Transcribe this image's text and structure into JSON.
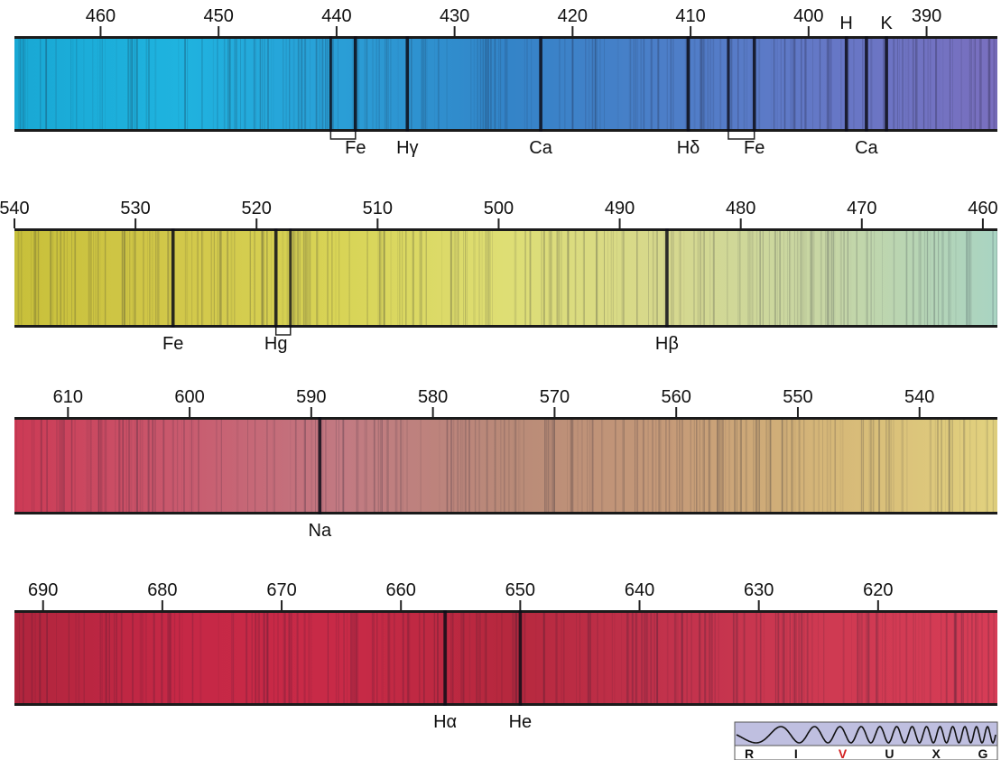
{
  "strips": [
    {
      "ticks": [
        460,
        450,
        440,
        430,
        420,
        410,
        400,
        390
      ],
      "colors": [
        "#19a8d4",
        "#1fb3df",
        "#2a9ed6",
        "#3384c8",
        "#4d7ec8",
        "#6677c6",
        "#7a6fbf"
      ],
      "lines": [
        {
          "nm": 438.4,
          "label": "Fe",
          "bracket_to": 440.5
        },
        {
          "nm": 434.0,
          "label": "Hγ"
        },
        {
          "nm": 422.7,
          "label": "Ca"
        },
        {
          "nm": 410.2,
          "label": "Hδ"
        },
        {
          "nm": 404.6,
          "label": "Fe",
          "bracket_to": 406.8
        },
        {
          "nm": 396.8,
          "label": "H",
          "above": true
        },
        {
          "nm": 393.4,
          "label": "K",
          "above": true
        },
        {
          "nm": 395.1,
          "label": "Ca"
        }
      ]
    },
    {
      "ticks": [
        540,
        530,
        520,
        510,
        500,
        490,
        480,
        470,
        460
      ],
      "colors": [
        "#c8c03a",
        "#d2c84a",
        "#d8d456",
        "#dede74",
        "#d6d88e",
        "#c6d6a6",
        "#a9d4c2"
      ],
      "lines": [
        {
          "nm": 526.9,
          "label": "Fe"
        },
        {
          "nm": 518.4,
          "label": "Hg",
          "bracket_to": 517.2
        },
        {
          "nm": 486.1,
          "label": "Hβ"
        }
      ]
    },
    {
      "ticks": [
        610,
        600,
        590,
        580,
        570,
        560,
        550,
        540
      ],
      "colors": [
        "#cc3a55",
        "#c95a6e",
        "#c27a82",
        "#b98a78",
        "#c59a78",
        "#d6b878",
        "#e2d27e"
      ],
      "lines": [
        {
          "nm": 589.3,
          "label": "Na"
        }
      ]
    },
    {
      "ticks": [
        690,
        680,
        670,
        660,
        650,
        640,
        630,
        620
      ],
      "colors": [
        "#b0253d",
        "#c62846",
        "#c82a47",
        "#b6283e",
        "#c2324c",
        "#cf3a52",
        "#d63c56"
      ],
      "lines": [
        {
          "nm": 656.3,
          "label": "Hα"
        },
        {
          "nm": 650.0,
          "label": "He"
        }
      ]
    }
  ],
  "band_key": {
    "labels": [
      "R",
      "I",
      "V",
      "U",
      "X",
      "G"
    ],
    "highlight": "V",
    "highlight_color": "#d32020",
    "background": "#bfbfe0"
  }
}
